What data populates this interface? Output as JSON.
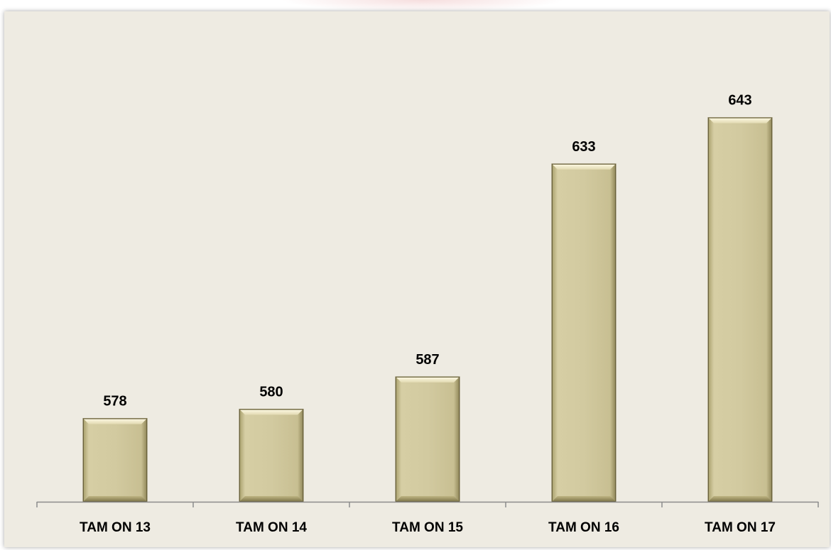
{
  "chart_data": {
    "type": "bar",
    "categories": [
      "TAM ON 13",
      "TAM ON 14",
      "TAM ON 15",
      "TAM ON 16",
      "TAM ON 17"
    ],
    "values": [
      578,
      580,
      587,
      633,
      643
    ],
    "data_labels": [
      "578",
      "580",
      "587",
      "633",
      "643"
    ],
    "title": "",
    "xlabel": "",
    "ylabel": "",
    "ylim": [
      560,
      650
    ],
    "grid": false,
    "legend": "none",
    "bar_color": "#d3cba0",
    "bar_style": "bevel",
    "axis_color": "#8c8c8c",
    "background": "#eeebe2"
  }
}
